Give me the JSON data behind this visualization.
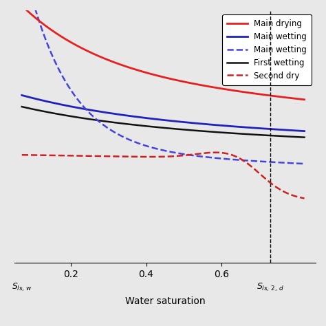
{
  "xlabel": "Water saturation",
  "xlim": [
    0.05,
    0.85
  ],
  "ylim": [
    -0.05,
    1.05
  ],
  "vline_x": 0.73,
  "colors": {
    "main_drying": "#e62020",
    "main_wetting_solid": "#2222bb",
    "main_wetting_dashed": "#4444dd",
    "first_wetting": "#111111",
    "second_drying": "#cc2222"
  },
  "background_color": "#e8e8e8"
}
